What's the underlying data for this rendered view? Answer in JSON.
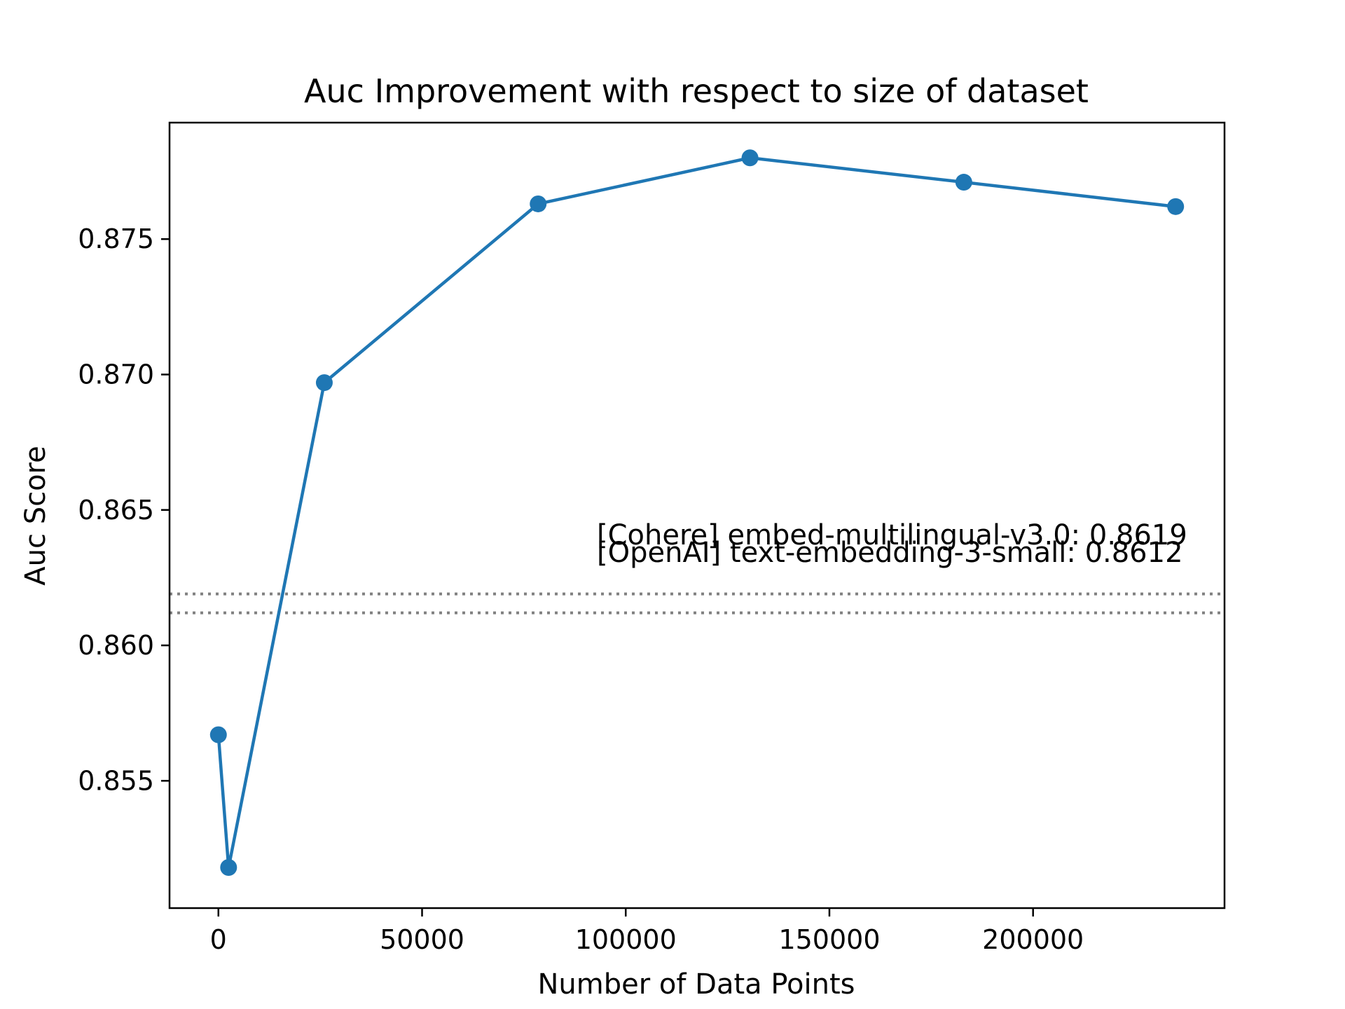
{
  "chart_data": {
    "type": "line",
    "title": "Auc Improvement with respect to size of dataset",
    "xlabel": "Number of Data Points",
    "ylabel": "Auc Score",
    "xlim": [
      -12000,
      247000
    ],
    "ylim": [
      0.8503,
      0.8793
    ],
    "x_ticks": [
      0,
      50000,
      100000,
      150000,
      200000
    ],
    "x_tick_labels": [
      "0",
      "50000",
      "100000",
      "150000",
      "200000"
    ],
    "y_ticks": [
      0.855,
      0.86,
      0.865,
      0.87,
      0.875
    ],
    "y_tick_labels": [
      "0.855",
      "0.860",
      "0.865",
      "0.870",
      "0.875"
    ],
    "grid": false,
    "series": [
      {
        "color": "#1f77b4",
        "marker": "circle",
        "x": [
          0,
          2500,
          26000,
          78500,
          130500,
          183000,
          235000
        ],
        "y": [
          0.8567,
          0.8518,
          0.8697,
          0.8763,
          0.878,
          0.8771,
          0.8762
        ]
      }
    ],
    "reference_lines": [
      {
        "y": 0.8619,
        "label": "[Cohere] embed-multilingual-v3.0: 0.8619",
        "style": "dotted",
        "color": "#808080"
      },
      {
        "y": 0.8612,
        "label": "[OpenAI] text-embedding-3-small: 0.8612",
        "style": "dotted",
        "color": "#808080"
      }
    ]
  }
}
